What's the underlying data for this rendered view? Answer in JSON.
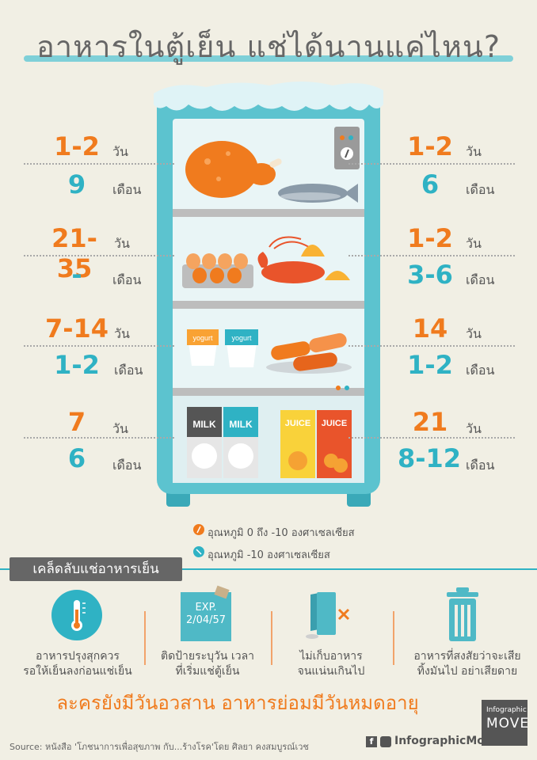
{
  "title": "อาหารในตู้เย็น แช่ได้นานแค่ไหน?",
  "rows": [
    {
      "left": {
        "top": "1-2",
        "top_unit": "วัน",
        "bottom": "9",
        "bottom_unit": "เดือน"
      },
      "right": {
        "top": "1-2",
        "top_unit": "วัน",
        "bottom": "6",
        "bottom_unit": "เดือน"
      }
    },
    {
      "left": {
        "top": "21-35",
        "top_unit": "วัน",
        "bottom": "-",
        "bottom_unit": "เดือน"
      },
      "right": {
        "top": "1-2",
        "top_unit": "วัน",
        "bottom": "3-6",
        "bottom_unit": "เดือน"
      }
    },
    {
      "left": {
        "top": "7-14",
        "top_unit": "วัน",
        "bottom": "1-2",
        "bottom_unit": "เดือน"
      },
      "right": {
        "top": "14",
        "top_unit": "วัน",
        "bottom": "1-2",
        "bottom_unit": "เดือน"
      }
    },
    {
      "left": {
        "top": "7",
        "top_unit": "วัน",
        "bottom": "6",
        "bottom_unit": "เดือน"
      },
      "right": {
        "top": "21",
        "top_unit": "วัน",
        "bottom": "8-12",
        "bottom_unit": "เดือน"
      }
    }
  ],
  "fridge": {
    "yogurt_label": "yogurt",
    "milk_label": "MILK",
    "juice_label": "JUICE"
  },
  "legend": {
    "orange": "อุณหภูมิ 0 ถึง -10 องศาเซลเซียส",
    "teal": "อุณหภูมิ -10 องศาเซลเซียส"
  },
  "tips": {
    "heading": "เคล็ดลับแช่อาหารเย็น",
    "items": [
      {
        "line1": "อาหารปรุงสุกควร",
        "line2": "รอให้เย็นลงก่อนแช่เย็น",
        "icon": "thermometer-icon"
      },
      {
        "line1": "ติดป้ายระบุวัน เวลา",
        "line2": "ที่เริ่มแช่ตู้เย็น",
        "icon": "label-tag-icon",
        "tag_line1": "EXP.",
        "tag_line2": "2/04/57"
      },
      {
        "line1": "ไม่เก็บอาหาร",
        "line2": "จนแน่นเกินไป",
        "icon": "full-fridge-icon"
      },
      {
        "line1": "อาหารที่สงสัยว่าจะเสีย",
        "line2": "ทิ้งมันไป อย่าเสียดาย",
        "icon": "trash-bin-icon"
      }
    ]
  },
  "slogan": "ละครยังมีวันอวสาน อาหารย่อมมีวันหมดอายุ",
  "source": "Source: หนังสือ 'โภชนาการเพื่อสุขภาพ กับ...ร้างโรค'โดย ศิลยา คงสมบูรณ์เวช",
  "social_handle": "InfographicMove",
  "logo": {
    "line1": "Infographic",
    "line2": "MOVE"
  },
  "colors": {
    "orange": "#f07b1e",
    "teal": "#2fb2c4",
    "fridge": "#5cc3cf",
    "background": "#f1efe4"
  }
}
